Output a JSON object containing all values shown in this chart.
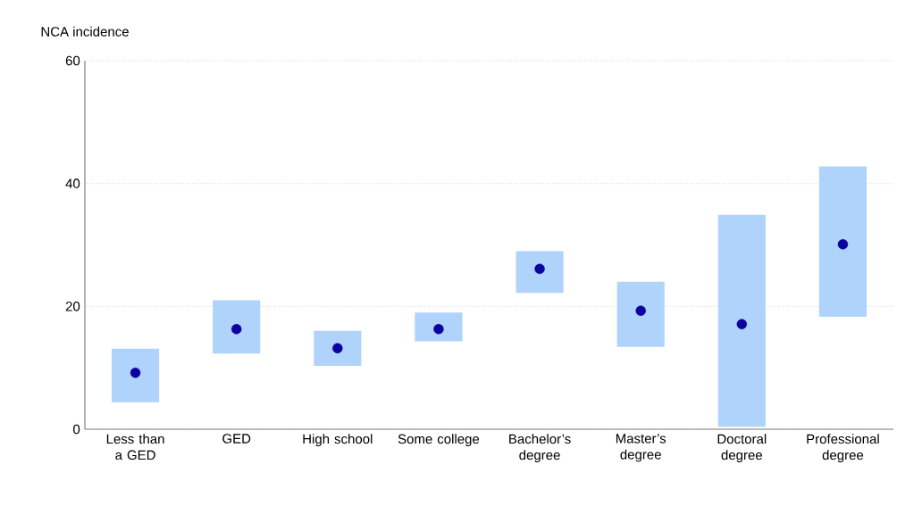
{
  "chart_data": {
    "type": "bar",
    "ylabel": "NCA incidence",
    "categories": [
      "Less than a GED",
      "GED",
      "High school",
      "Some college",
      "Bachelor’s degree",
      "Master’s degree",
      "Doctoral degree",
      "Professional degree"
    ],
    "series": [
      {
        "color": "#b0d3fc",
        "base": [
          4.4,
          12.3,
          10.3,
          14.3,
          22.2,
          13.4,
          0.4,
          18.3
        ],
        "values": [
          8.7,
          8.7,
          5.7,
          4.7,
          6.8,
          10.6,
          34.5,
          24.5
        ]
      },
      {
        "type": "scatter",
        "color": "#0c029f",
        "marker": "circle",
        "x": [
          "Less than a GED",
          "GED",
          "High school",
          "Some college",
          "Bachelor’s degree",
          "Master’s degree",
          "Doctoral degree",
          "Professional degree"
        ],
        "values": [
          9.2,
          16.3,
          13.2,
          16.3,
          26.1,
          19.3,
          17.1,
          30.1
        ]
      }
    ],
    "ylim": [
      0,
      60
    ],
    "yticks": [
      0,
      20,
      40,
      60
    ],
    "grid": "y"
  }
}
